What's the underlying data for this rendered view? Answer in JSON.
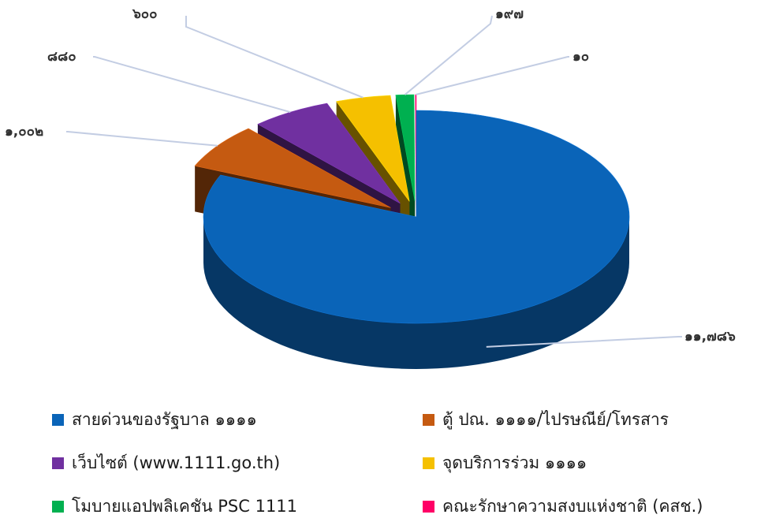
{
  "chart_data": {
    "type": "pie",
    "style": "3d-exploded",
    "slices": [
      {
        "name": "สายด่วนของรัฐบาล ๑๑๑๑",
        "value": 11786,
        "label": "๑๑,๗๘๖",
        "color": "#0a64b8"
      },
      {
        "name": "ตู้ ปณ. ๑๑๑๑/ไปรษณีย์/โทรสาร",
        "value": 1002,
        "label": "๑,๐๐๒",
        "color": "#c55a11"
      },
      {
        "name": "เว็บไซต์ (www.1111.go.th)",
        "value": 880,
        "label": "๘๘๐",
        "color": "#7030a0"
      },
      {
        "name": "จุดบริการร่วม ๑๑๑๑",
        "value": 600,
        "label": "๖๐๐",
        "color": "#f5c000"
      },
      {
        "name": "โมบายแอปพลิเคชัน PSC 1111",
        "value": 197,
        "label": "๑๙๗",
        "color": "#00b050"
      },
      {
        "name": "คณะรักษาความสงบแห่งชาติ (คสช.)",
        "value": 10,
        "label": "๑๐",
        "color": "#ff0066"
      }
    ],
    "legend_position": "bottom"
  }
}
